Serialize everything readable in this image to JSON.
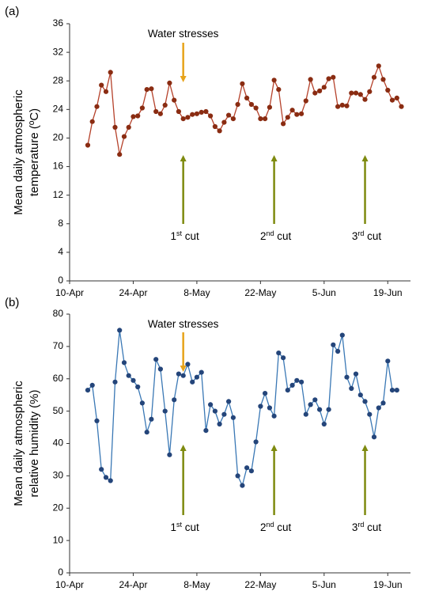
{
  "chart_data": [
    {
      "type": "line",
      "panel_label": "(a)",
      "ylabel_line1": "Mean daily atmospheric",
      "ylabel_line2": "temperature (ºC)",
      "ylim": [
        0,
        36
      ],
      "yticks": [
        0,
        4,
        8,
        12,
        16,
        20,
        24,
        28,
        32,
        36
      ],
      "xlim": [
        "2023-04-10",
        "2023-06-24"
      ],
      "xticks": [
        {
          "date": "2023-04-10",
          "label": "10-Apr"
        },
        {
          "date": "2023-04-24",
          "label": "24-Apr"
        },
        {
          "date": "2023-05-08",
          "label": "8-May"
        },
        {
          "date": "2023-05-22",
          "label": "22-May"
        },
        {
          "date": "2023-06-05",
          "label": "5-Jun"
        },
        {
          "date": "2023-06-19",
          "label": "19-Jun"
        }
      ],
      "grid": false,
      "line_color": "#b5412a",
      "marker_color": "#8a2c12",
      "start_date": "2023-04-14",
      "values": [
        19.0,
        22.3,
        24.4,
        27.4,
        26.5,
        29.2,
        21.5,
        17.7,
        20.2,
        21.5,
        23.0,
        23.1,
        24.2,
        26.8,
        26.9,
        23.7,
        23.4,
        24.6,
        27.7,
        25.3,
        23.7,
        22.7,
        22.9,
        23.3,
        23.4,
        23.6,
        23.7,
        23.1,
        21.6,
        21.0,
        22.2,
        23.2,
        22.7,
        24.7,
        27.6,
        25.6,
        24.7,
        24.2,
        22.7,
        22.7,
        24.3,
        28.1,
        26.8,
        22.0,
        22.9,
        23.9,
        23.3,
        23.4,
        25.2,
        28.2,
        26.3,
        26.6,
        27.1,
        28.3,
        28.5,
        24.4,
        24.6,
        24.5,
        26.3,
        26.3,
        26.1,
        25.4,
        26.5,
        28.5,
        30.1,
        28.2,
        26.7,
        25.3,
        25.6,
        24.4
      ],
      "annotations": {
        "water_stress": {
          "text": "Water stresses",
          "date": "2023-05-05",
          "color": "#e7a31a"
        },
        "cuts": [
          {
            "prefix": "1",
            "sup": "st",
            "suffix": " cut",
            "date": "2023-05-05",
            "color": "#7e8a0f"
          },
          {
            "prefix": "2",
            "sup": "nd",
            "suffix": " cut",
            "date": "2023-05-25",
            "color": "#7e8a0f"
          },
          {
            "prefix": "3",
            "sup": "rd",
            "suffix": " cut",
            "date": "2023-06-14",
            "color": "#7e8a0f"
          }
        ]
      }
    },
    {
      "type": "line",
      "panel_label": "(b)",
      "ylabel_line1": "Mean daily atmospheric",
      "ylabel_line2": "relative humidity (%)",
      "ylim": [
        0,
        80
      ],
      "yticks": [
        0,
        10,
        20,
        30,
        40,
        50,
        60,
        70,
        80
      ],
      "xlim": [
        "2023-04-10",
        "2023-06-24"
      ],
      "xticks": [
        {
          "date": "2023-04-10",
          "label": "10-Apr"
        },
        {
          "date": "2023-04-24",
          "label": "24-Apr"
        },
        {
          "date": "2023-05-08",
          "label": "8-May"
        },
        {
          "date": "2023-05-22",
          "label": "22-May"
        },
        {
          "date": "2023-06-05",
          "label": "5-Jun"
        },
        {
          "date": "2023-06-19",
          "label": "19-Jun"
        }
      ],
      "grid": false,
      "line_color": "#3a78b5",
      "marker_color": "#24457a",
      "start_date": "2023-04-14",
      "values": [
        56.5,
        58.0,
        47.0,
        32.0,
        29.5,
        28.5,
        59.0,
        75.0,
        65.0,
        61.0,
        59.5,
        57.5,
        52.5,
        43.5,
        47.5,
        66.0,
        63.0,
        50.0,
        36.5,
        53.5,
        61.5,
        61.0,
        64.5,
        59.0,
        60.5,
        62.0,
        44.0,
        52.0,
        50.0,
        46.0,
        49.0,
        53.0,
        48.0,
        30.0,
        27.0,
        32.5,
        31.5,
        40.5,
        51.5,
        55.5,
        51.0,
        48.5,
        68.0,
        66.5,
        56.5,
        58.0,
        59.5,
        59.0,
        49.0,
        52.0,
        53.5,
        50.5,
        46.0,
        50.5,
        70.5,
        68.5,
        73.5,
        60.5,
        57.0,
        61.5,
        55.0,
        53.0,
        49.0,
        42.0,
        51.0,
        52.5,
        65.5,
        56.5,
        56.5
      ],
      "annotations": {
        "water_stress": {
          "text": "Water stresses",
          "date": "2023-05-05",
          "color": "#e7a31a"
        },
        "cuts": [
          {
            "prefix": "1",
            "sup": "st",
            "suffix": " cut",
            "date": "2023-05-05",
            "color": "#7e8a0f"
          },
          {
            "prefix": "2",
            "sup": "nd",
            "suffix": " cut",
            "date": "2023-05-25",
            "color": "#7e8a0f"
          },
          {
            "prefix": "3",
            "sup": "rd",
            "suffix": " cut",
            "date": "2023-06-14",
            "color": "#7e8a0f"
          }
        ]
      }
    }
  ]
}
